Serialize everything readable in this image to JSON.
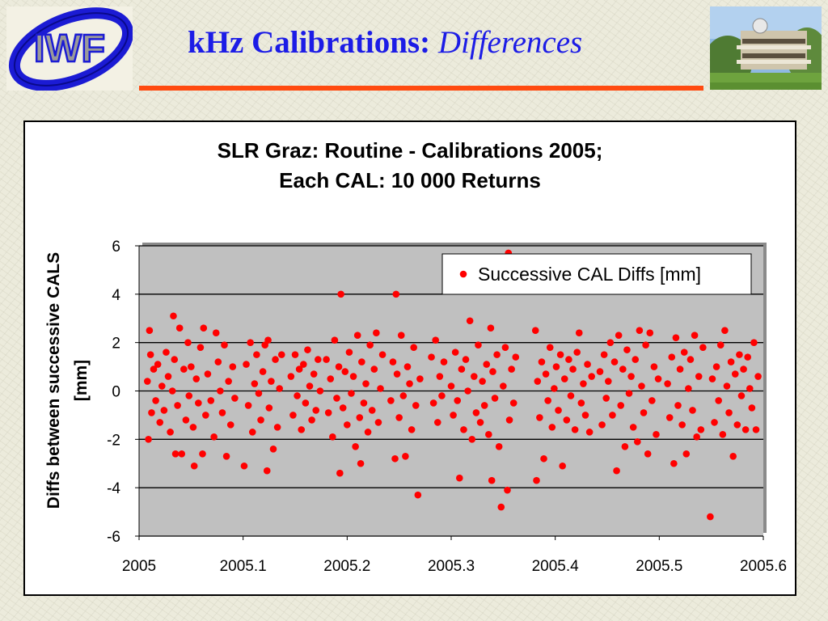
{
  "slide": {
    "title_main": "kHz Calibrations: ",
    "title_emphasis": "Differences",
    "logo_text": "IWF",
    "accent_color": "#ff4a10",
    "title_color": "#1c1ce6"
  },
  "chart_data": {
    "type": "scatter",
    "title_line1": "SLR Graz: Routine - Calibrations 2005;",
    "title_line2": "Each CAL: 10 000 Returns",
    "xlabel": "",
    "ylabel_line1": "Diffs between successive CALS",
    "ylabel_line2": "[mm]",
    "xlim": [
      2005,
      2005.6
    ],
    "ylim": [
      -6,
      6
    ],
    "x_ticks": [
      "2005",
      "2005.1",
      "2005.2",
      "2005.3",
      "2005.4",
      "2005.5",
      "2005.6"
    ],
    "y_ticks": [
      "6",
      "4",
      "2",
      "0",
      "-2",
      "-4",
      "-6"
    ],
    "grid": true,
    "plot_background": "#c0c0c0",
    "legend_position": "top-right",
    "series": [
      {
        "name": "Successive CAL Diffs [mm]",
        "color": "#ff0000",
        "points": [
          [
            2005.008,
            0.4
          ],
          [
            2005.009,
            -2.0
          ],
          [
            2005.01,
            2.5
          ],
          [
            2005.011,
            1.5
          ],
          [
            2005.012,
            -0.9
          ],
          [
            2005.014,
            0.9
          ],
          [
            2005.016,
            -0.4
          ],
          [
            2005.018,
            1.1
          ],
          [
            2005.02,
            -1.3
          ],
          [
            2005.022,
            0.2
          ],
          [
            2005.024,
            -0.8
          ],
          [
            2005.026,
            1.6
          ],
          [
            2005.028,
            0.6
          ],
          [
            2005.03,
            -1.7
          ],
          [
            2005.032,
            0.0
          ],
          [
            2005.033,
            3.1
          ],
          [
            2005.034,
            1.3
          ],
          [
            2005.035,
            -2.6
          ],
          [
            2005.037,
            -0.6
          ],
          [
            2005.039,
            2.6
          ],
          [
            2005.041,
            -2.6
          ],
          [
            2005.043,
            0.9
          ],
          [
            2005.045,
            -1.2
          ],
          [
            2005.047,
            2.0
          ],
          [
            2005.048,
            -0.2
          ],
          [
            2005.05,
            1.0
          ],
          [
            2005.052,
            -1.5
          ],
          [
            2005.053,
            -3.1
          ],
          [
            2005.055,
            0.5
          ],
          [
            2005.057,
            -0.5
          ],
          [
            2005.059,
            1.8
          ],
          [
            2005.061,
            -2.6
          ],
          [
            2005.062,
            2.6
          ],
          [
            2005.064,
            -1.0
          ],
          [
            2005.066,
            0.7
          ],
          [
            2005.069,
            -0.4
          ],
          [
            2005.072,
            -1.9
          ],
          [
            2005.074,
            2.4
          ],
          [
            2005.076,
            1.2
          ],
          [
            2005.078,
            0.0
          ],
          [
            2005.08,
            -0.9
          ],
          [
            2005.082,
            1.9
          ],
          [
            2005.084,
            -2.7
          ],
          [
            2005.086,
            0.4
          ],
          [
            2005.088,
            -1.4
          ],
          [
            2005.09,
            1.0
          ],
          [
            2005.092,
            -0.3
          ],
          [
            2005.101,
            -3.1
          ],
          [
            2005.103,
            1.1
          ],
          [
            2005.105,
            -0.6
          ],
          [
            2005.107,
            2.0
          ],
          [
            2005.109,
            -1.7
          ],
          [
            2005.111,
            0.3
          ],
          [
            2005.113,
            1.5
          ],
          [
            2005.115,
            -0.1
          ],
          [
            2005.117,
            -1.2
          ],
          [
            2005.119,
            0.8
          ],
          [
            2005.121,
            1.9
          ],
          [
            2005.123,
            -3.3
          ],
          [
            2005.124,
            2.1
          ],
          [
            2005.125,
            -0.7
          ],
          [
            2005.127,
            0.4
          ],
          [
            2005.129,
            -2.4
          ],
          [
            2005.131,
            1.3
          ],
          [
            2005.133,
            -1.5
          ],
          [
            2005.135,
            0.1
          ],
          [
            2005.137,
            1.5
          ],
          [
            2005.146,
            0.6
          ],
          [
            2005.148,
            -1.0
          ],
          [
            2005.15,
            1.5
          ],
          [
            2005.152,
            -0.2
          ],
          [
            2005.154,
            0.9
          ],
          [
            2005.156,
            -1.6
          ],
          [
            2005.158,
            1.1
          ],
          [
            2005.16,
            -0.5
          ],
          [
            2005.162,
            1.7
          ],
          [
            2005.164,
            0.2
          ],
          [
            2005.166,
            -1.2
          ],
          [
            2005.168,
            0.7
          ],
          [
            2005.17,
            -0.8
          ],
          [
            2005.172,
            1.3
          ],
          [
            2005.174,
            0.0
          ],
          [
            2005.18,
            1.3
          ],
          [
            2005.182,
            -0.9
          ],
          [
            2005.184,
            0.5
          ],
          [
            2005.186,
            -1.9
          ],
          [
            2005.188,
            2.1
          ],
          [
            2005.19,
            -0.3
          ],
          [
            2005.192,
            1.0
          ],
          [
            2005.193,
            -3.4
          ],
          [
            2005.194,
            4.0
          ],
          [
            2005.196,
            -0.7
          ],
          [
            2005.198,
            0.8
          ],
          [
            2005.2,
            -1.4
          ],
          [
            2005.202,
            1.6
          ],
          [
            2005.204,
            -0.1
          ],
          [
            2005.206,
            0.6
          ],
          [
            2005.208,
            -2.3
          ],
          [
            2005.21,
            2.3
          ],
          [
            2005.212,
            -1.1
          ],
          [
            2005.213,
            -3.0
          ],
          [
            2005.214,
            1.2
          ],
          [
            2005.216,
            -0.5
          ],
          [
            2005.218,
            0.3
          ],
          [
            2005.22,
            -1.7
          ],
          [
            2005.222,
            1.9
          ],
          [
            2005.224,
            -0.8
          ],
          [
            2005.226,
            0.9
          ],
          [
            2005.228,
            2.4
          ],
          [
            2005.23,
            -1.3
          ],
          [
            2005.232,
            0.1
          ],
          [
            2005.234,
            1.5
          ],
          [
            2005.242,
            -0.4
          ],
          [
            2005.244,
            1.2
          ],
          [
            2005.246,
            -2.8
          ],
          [
            2005.247,
            4.0
          ],
          [
            2005.248,
            0.7
          ],
          [
            2005.25,
            -1.1
          ],
          [
            2005.252,
            2.3
          ],
          [
            2005.254,
            -0.2
          ],
          [
            2005.256,
            -2.7
          ],
          [
            2005.258,
            1.0
          ],
          [
            2005.26,
            0.3
          ],
          [
            2005.262,
            -1.6
          ],
          [
            2005.264,
            1.8
          ],
          [
            2005.266,
            -0.6
          ],
          [
            2005.268,
            -4.3
          ],
          [
            2005.27,
            0.5
          ],
          [
            2005.281,
            1.4
          ],
          [
            2005.283,
            -0.5
          ],
          [
            2005.285,
            2.1
          ],
          [
            2005.287,
            -1.3
          ],
          [
            2005.289,
            0.6
          ],
          [
            2005.291,
            -0.2
          ],
          [
            2005.293,
            1.2
          ],
          [
            2005.3,
            0.2
          ],
          [
            2005.302,
            -1.0
          ],
          [
            2005.304,
            1.6
          ],
          [
            2005.306,
            -0.4
          ],
          [
            2005.308,
            -3.6
          ],
          [
            2005.31,
            0.9
          ],
          [
            2005.312,
            -1.6
          ],
          [
            2005.314,
            1.3
          ],
          [
            2005.316,
            0.0
          ],
          [
            2005.318,
            2.9
          ],
          [
            2005.32,
            -2.0
          ],
          [
            2005.322,
            0.6
          ],
          [
            2005.324,
            -0.9
          ],
          [
            2005.326,
            1.9
          ],
          [
            2005.328,
            -1.3
          ],
          [
            2005.33,
            0.4
          ],
          [
            2005.332,
            -0.6
          ],
          [
            2005.334,
            1.1
          ],
          [
            2005.336,
            -1.8
          ],
          [
            2005.338,
            2.6
          ],
          [
            2005.339,
            -3.7
          ],
          [
            2005.34,
            0.8
          ],
          [
            2005.342,
            -0.3
          ],
          [
            2005.344,
            1.5
          ],
          [
            2005.346,
            -2.3
          ],
          [
            2005.348,
            -4.8
          ],
          [
            2005.35,
            0.2
          ],
          [
            2005.352,
            1.8
          ],
          [
            2005.354,
            -4.1
          ],
          [
            2005.355,
            5.7
          ],
          [
            2005.356,
            -1.2
          ],
          [
            2005.358,
            0.9
          ],
          [
            2005.36,
            -0.5
          ],
          [
            2005.362,
            1.4
          ],
          [
            2005.381,
            2.5
          ],
          [
            2005.382,
            -3.7
          ],
          [
            2005.383,
            0.4
          ],
          [
            2005.385,
            -1.1
          ],
          [
            2005.387,
            1.2
          ],
          [
            2005.389,
            -2.8
          ],
          [
            2005.391,
            0.7
          ],
          [
            2005.393,
            -0.4
          ],
          [
            2005.395,
            1.8
          ],
          [
            2005.397,
            -1.5
          ],
          [
            2005.399,
            0.1
          ],
          [
            2005.401,
            1.0
          ],
          [
            2005.403,
            -0.8
          ],
          [
            2005.405,
            1.5
          ],
          [
            2005.407,
            -3.1
          ],
          [
            2005.409,
            0.5
          ],
          [
            2005.411,
            -1.2
          ],
          [
            2005.413,
            1.3
          ],
          [
            2005.415,
            -0.2
          ],
          [
            2005.417,
            0.9
          ],
          [
            2005.419,
            -1.6
          ],
          [
            2005.421,
            1.6
          ],
          [
            2005.423,
            2.4
          ],
          [
            2005.425,
            -0.5
          ],
          [
            2005.427,
            0.3
          ],
          [
            2005.429,
            -1.0
          ],
          [
            2005.431,
            1.1
          ],
          [
            2005.433,
            -1.7
          ],
          [
            2005.435,
            0.6
          ],
          [
            2005.443,
            0.8
          ],
          [
            2005.445,
            -1.4
          ],
          [
            2005.447,
            1.5
          ],
          [
            2005.449,
            -0.3
          ],
          [
            2005.451,
            0.4
          ],
          [
            2005.453,
            2.0
          ],
          [
            2005.455,
            -1.0
          ],
          [
            2005.457,
            1.2
          ],
          [
            2005.459,
            -3.3
          ],
          [
            2005.461,
            2.3
          ],
          [
            2005.463,
            -0.6
          ],
          [
            2005.465,
            0.9
          ],
          [
            2005.467,
            -2.3
          ],
          [
            2005.469,
            1.7
          ],
          [
            2005.471,
            -0.1
          ],
          [
            2005.473,
            0.6
          ],
          [
            2005.475,
            -1.5
          ],
          [
            2005.477,
            1.3
          ],
          [
            2005.479,
            -2.1
          ],
          [
            2005.481,
            2.5
          ],
          [
            2005.483,
            0.2
          ],
          [
            2005.485,
            -0.9
          ],
          [
            2005.487,
            1.9
          ],
          [
            2005.489,
            -2.6
          ],
          [
            2005.491,
            2.4
          ],
          [
            2005.493,
            -0.4
          ],
          [
            2005.495,
            1.0
          ],
          [
            2005.497,
            -1.8
          ],
          [
            2005.499,
            0.5
          ],
          [
            2005.508,
            0.3
          ],
          [
            2005.51,
            -1.1
          ],
          [
            2005.512,
            1.4
          ],
          [
            2005.514,
            -3.0
          ],
          [
            2005.516,
            2.2
          ],
          [
            2005.518,
            -0.6
          ],
          [
            2005.52,
            0.9
          ],
          [
            2005.522,
            -1.4
          ],
          [
            2005.524,
            1.6
          ],
          [
            2005.526,
            -2.6
          ],
          [
            2005.528,
            0.1
          ],
          [
            2005.53,
            1.3
          ],
          [
            2005.532,
            -0.8
          ],
          [
            2005.534,
            2.3
          ],
          [
            2005.536,
            -1.9
          ],
          [
            2005.538,
            0.6
          ],
          [
            2005.54,
            -1.6
          ],
          [
            2005.542,
            1.8
          ],
          [
            2005.549,
            -5.2
          ],
          [
            2005.551,
            0.5
          ],
          [
            2005.553,
            -1.3
          ],
          [
            2005.555,
            1.0
          ],
          [
            2005.557,
            -0.4
          ],
          [
            2005.559,
            1.9
          ],
          [
            2005.561,
            -1.8
          ],
          [
            2005.563,
            2.5
          ],
          [
            2005.565,
            0.2
          ],
          [
            2005.567,
            -0.9
          ],
          [
            2005.569,
            1.2
          ],
          [
            2005.571,
            -2.7
          ],
          [
            2005.573,
            0.7
          ],
          [
            2005.575,
            -1.4
          ],
          [
            2005.577,
            1.5
          ],
          [
            2005.579,
            -0.2
          ],
          [
            2005.581,
            0.9
          ],
          [
            2005.583,
            -1.6
          ],
          [
            2005.585,
            1.4
          ],
          [
            2005.587,
            0.1
          ],
          [
            2005.589,
            -0.7
          ],
          [
            2005.591,
            2.0
          ],
          [
            2005.593,
            -1.6
          ],
          [
            2005.595,
            0.6
          ]
        ]
      }
    ]
  }
}
